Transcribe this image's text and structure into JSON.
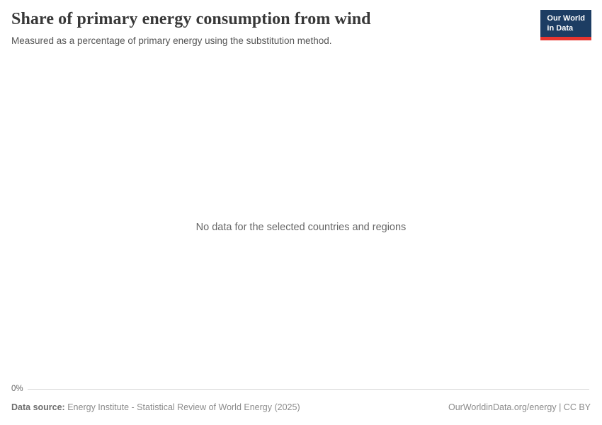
{
  "header": {
    "title": "Share of primary energy consumption from wind",
    "subtitle": "Measured as a percentage of primary energy using the substitution method.",
    "logo": {
      "line1": "Our World",
      "line2": "in Data",
      "background_color": "#1d3d63",
      "accent_color": "#e8352f"
    }
  },
  "chart_data": {
    "type": "line",
    "title": "Share of primary energy consumption from wind",
    "subtitle": "Measured as a percentage of primary energy using the substitution method.",
    "series": [],
    "x": [],
    "note": "No data for the selected countries and regions",
    "y_axis": {
      "ticks": [
        "0%"
      ],
      "ylim_min": 0
    },
    "grid": false,
    "legend": "none"
  },
  "footer": {
    "data_source_label": "Data source:",
    "data_source_text": "Energy Institute - Statistical Review of World Energy (2025)",
    "credit": "OurWorldinData.org/energy | CC BY"
  }
}
